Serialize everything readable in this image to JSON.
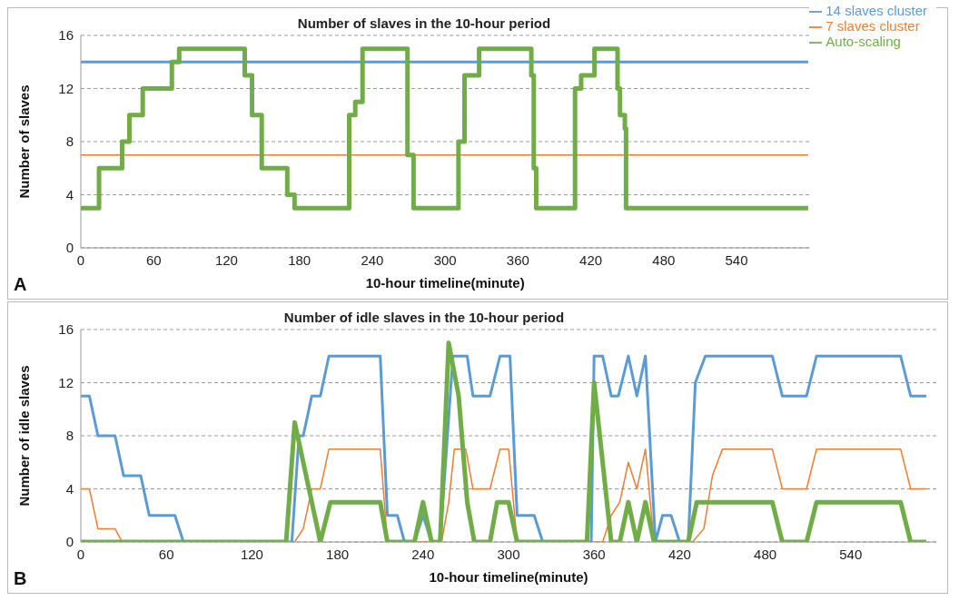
{
  "chart_data": [
    {
      "type": "line",
      "title": "Number of slaves in the 10-hour period",
      "xlabel": "10-hour timeline(minute)",
      "ylabel": "Number of slaves",
      "xlim": [
        0,
        600
      ],
      "xticks": [
        0,
        60,
        120,
        180,
        240,
        300,
        360,
        420,
        480,
        540
      ],
      "ylim": [
        0,
        16
      ],
      "yticks": [
        0,
        4,
        8,
        12,
        16
      ],
      "grid": "y",
      "legend": "top right",
      "annotations": [
        "A"
      ],
      "series": [
        {
          "name": "7 slaves cluster",
          "color": "#ed7d31",
          "x": [
            0,
            599
          ],
          "values": [
            7,
            7
          ]
        },
        {
          "name": "14 slaves cluster",
          "color": "#5b9bd5",
          "x": [
            0,
            599
          ],
          "values": [
            14,
            14
          ]
        },
        {
          "name": "Auto-scaling",
          "type": "step",
          "color": "#70ad47",
          "x": [
            0,
            15,
            34,
            40,
            51,
            75,
            81,
            135,
            141,
            149,
            170,
            176,
            221,
            226,
            232,
            269,
            274,
            311,
            316,
            328,
            371,
            373,
            375,
            407,
            412,
            423,
            442,
            444,
            448,
            449,
            599
          ],
          "values": [
            3,
            6,
            8,
            10,
            12,
            14,
            15,
            13,
            10,
            6,
            4,
            3,
            10,
            11,
            15,
            7,
            3,
            8,
            13,
            15,
            13,
            6,
            3,
            12,
            13,
            15,
            12,
            10,
            9,
            3,
            3
          ]
        }
      ]
    },
    {
      "type": "line",
      "title": "Number of idle slaves in the 10-hour period",
      "xlabel": "10-hour timeline(minute)",
      "ylabel": "Number of idle slaves",
      "xlim": [
        0,
        600
      ],
      "xticks": [
        0,
        60,
        120,
        180,
        240,
        300,
        360,
        420,
        480,
        540
      ],
      "ylim": [
        0,
        16
      ],
      "yticks": [
        0,
        4,
        8,
        12,
        16
      ],
      "grid": "y",
      "annotations": [
        "B"
      ],
      "series": [
        {
          "color": "#ed7d31",
          "x": [
            0,
            6,
            12,
            24,
            29,
            150,
            156,
            162,
            168,
            174,
            210,
            215,
            253,
            258,
            262,
            270,
            275,
            287,
            294,
            300,
            306,
            366,
            372,
            378,
            384,
            390,
            396,
            402,
            429,
            437,
            443,
            450,
            485,
            492,
            509,
            516,
            575,
            582,
            593
          ],
          "values": [
            4,
            4,
            1,
            1,
            0,
            0,
            1,
            4,
            4,
            7,
            7,
            0,
            0,
            3,
            7,
            7,
            4,
            4,
            7,
            7,
            0,
            0,
            2,
            3,
            6,
            4,
            7,
            0,
            0,
            1,
            5,
            7,
            7,
            4,
            4,
            7,
            7,
            4,
            4
          ]
        },
        {
          "color": "#5b9bd5",
          "x": [
            0,
            6,
            12,
            24,
            30,
            42,
            48,
            66,
            72,
            148,
            153,
            156,
            162,
            168,
            174,
            210,
            215,
            222,
            227,
            234,
            240,
            246,
            252,
            261,
            271,
            275,
            287,
            294,
            301,
            306,
            318,
            324,
            358,
            360,
            366,
            372,
            377,
            384,
            390,
            396,
            403,
            408,
            414,
            420,
            426,
            431,
            438,
            485,
            492,
            509,
            516,
            575,
            582,
            593
          ],
          "values": [
            11,
            11,
            8,
            8,
            5,
            5,
            2,
            2,
            0,
            0,
            8,
            8,
            11,
            11,
            14,
            14,
            2,
            2,
            0,
            0,
            2,
            0,
            0,
            14,
            14,
            11,
            11,
            14,
            14,
            2,
            2,
            0,
            0,
            14,
            14,
            11,
            11,
            14,
            11,
            14,
            0,
            2,
            2,
            0,
            0,
            12,
            14,
            14,
            11,
            11,
            14,
            14,
            11,
            11
          ]
        },
        {
          "color": "#70ad47",
          "x": [
            0,
            144,
            150,
            168,
            175,
            210,
            215,
            234,
            240,
            246,
            252,
            258,
            265,
            271,
            276,
            287,
            292,
            300,
            306,
            355,
            360,
            372,
            378,
            384,
            390,
            396,
            402,
            426,
            432,
            485,
            492,
            509,
            516,
            575,
            582,
            593
          ],
          "values": [
            0,
            0,
            9,
            0,
            3,
            3,
            0,
            0,
            3,
            0,
            0,
            15,
            11,
            3,
            0,
            0,
            3,
            3,
            0,
            0,
            12,
            0,
            0,
            3,
            0,
            3,
            0,
            0,
            3,
            3,
            0,
            0,
            3,
            3,
            0,
            0
          ]
        }
      ]
    }
  ]
}
